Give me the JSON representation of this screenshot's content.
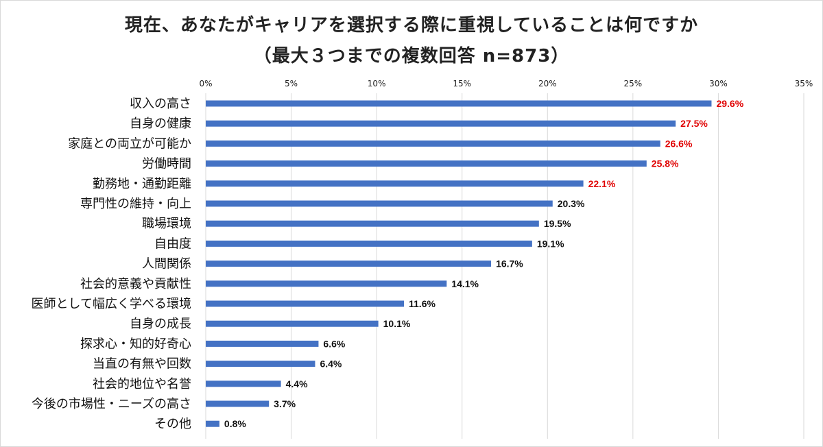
{
  "colors": {
    "bar": "#4472C4",
    "highlight_label": "#E00000",
    "normal_label": "#111111",
    "gridline": "#d9d9d9"
  },
  "chart_data": {
    "type": "bar",
    "orientation": "horizontal",
    "title": "現在、あなたがキャリアを選択する際に重視していることは何ですか",
    "subtitle": "（最大３つまでの複数回答 n=873）",
    "xlabel": "",
    "ylabel": "",
    "xlim": [
      0,
      35
    ],
    "ticks": [
      "0%",
      "5%",
      "10%",
      "15%",
      "20%",
      "25%",
      "30%",
      "35%"
    ],
    "tick_values": [
      0,
      5,
      10,
      15,
      20,
      25,
      30,
      35
    ],
    "grid": true,
    "categories": [
      "収入の高さ",
      "自身の健康",
      "家庭との両立が可能か",
      "労働時間",
      "勤務地・通勤距離",
      "専門性の維持・向上",
      "職場環境",
      "自由度",
      "人間関係",
      "社会的意義や貢献性",
      "医師として幅広く学べる環境",
      "自身の成長",
      "探求心・知的好奇心",
      "当直の有無や回数",
      "社会的地位や名誉",
      "今後の市場性・ニーズの高さ",
      "その他"
    ],
    "values": [
      29.6,
      27.5,
      26.6,
      25.8,
      22.1,
      20.3,
      19.5,
      19.1,
      16.7,
      14.1,
      11.6,
      10.1,
      6.6,
      6.4,
      4.4,
      3.7,
      0.8
    ],
    "value_labels": [
      "29.6%",
      "27.5%",
      "26.6%",
      "25.8%",
      "22.1%",
      "20.3%",
      "19.5%",
      "19.1%",
      "16.7%",
      "14.1%",
      "11.6%",
      "10.1%",
      "6.6%",
      "6.4%",
      "4.4%",
      "3.7%",
      "0.8%"
    ],
    "highlighted_count": 5
  }
}
